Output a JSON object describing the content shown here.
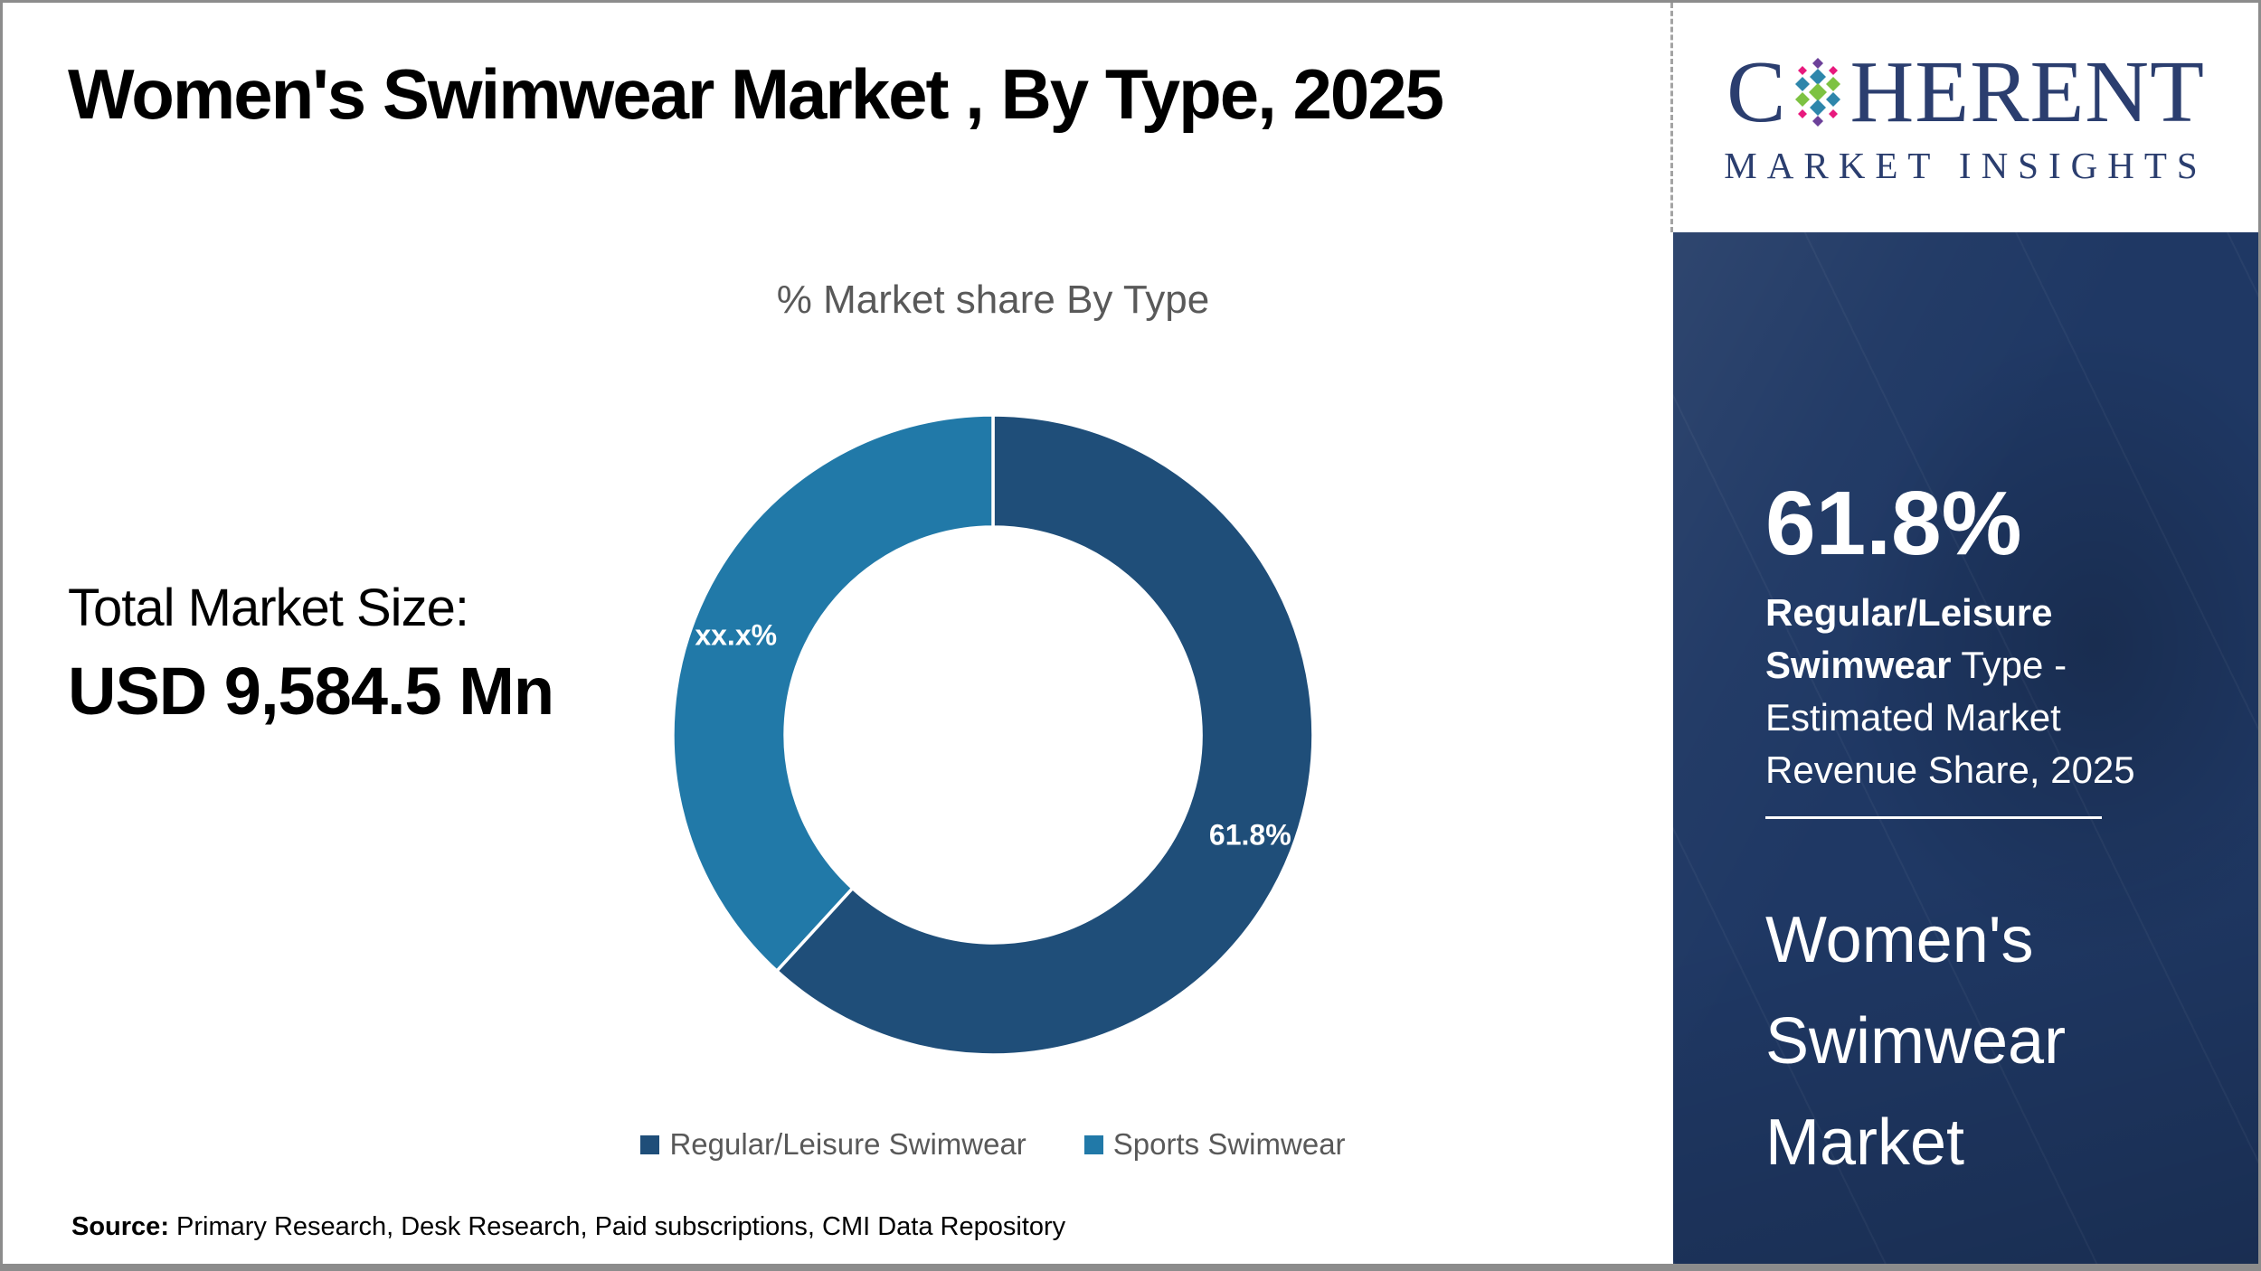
{
  "header": {
    "title": "Women's Swimwear Market , By Type, 2025"
  },
  "logo": {
    "word_start": "C",
    "word_end": "HERENT",
    "subtitle": "MARKET INSIGHTS"
  },
  "left_panel": {
    "market_size_label": "Total Market Size:",
    "market_size_value": "USD 9,584.5 Mn"
  },
  "chart_data": {
    "type": "pie",
    "subtype": "donut",
    "title": "% Market share By Type",
    "categories": [
      "Regular/Leisure Swimwear",
      "Sports Swimwear"
    ],
    "values": [
      61.8,
      38.2
    ],
    "slice_labels": [
      "61.8%",
      "xx.x%"
    ],
    "colors": [
      "#1F4E79",
      "#2179A8"
    ],
    "label_color": "#FFFFFF",
    "legend_position": "bottom",
    "start_angle_deg": 0,
    "direction": "clockwise",
    "inner_radius_ratio": 0.65
  },
  "sidebar": {
    "highlight_value": "61.8%",
    "highlight_bold": "Regular/Leisure Swimwear",
    "highlight_rest": " Type - Estimated Market Revenue Share, 2025",
    "product_title": "Women's Swimwear Market"
  },
  "footer": {
    "source_label": "Source:",
    "source_text": " Primary Research, Desk Research, Paid subscriptions, CMI Data Repository"
  },
  "theme": {
    "sidebar_bg": "#1F3864",
    "logo_navy": "#2B3E6F",
    "text_gray": "#595959",
    "border_gray": "#8C8C8C"
  }
}
